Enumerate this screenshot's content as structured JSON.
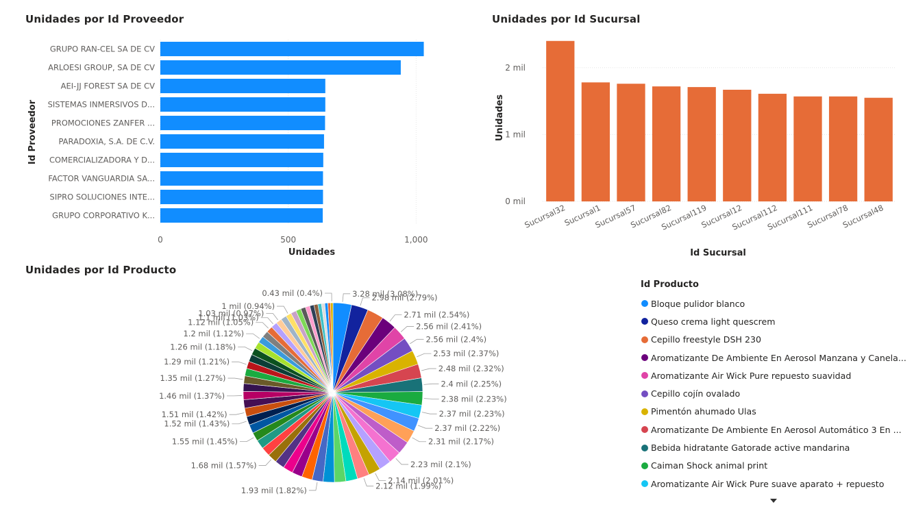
{
  "chart_data": [
    {
      "type": "bar",
      "orientation": "horizontal",
      "title": "Unidades por Id Proveedor",
      "xlabel": "Unidades",
      "ylabel": "Id Proveedor",
      "categories": [
        "GRUPO RAN-CEL SA DE CV",
        "ARLOESI GROUP, SA DE CV",
        "AEI-JJ FOREST SA DE CV",
        "SISTEMAS INMERSIVOS D...",
        "PROMOCIONES ZANFER ...",
        "PARADOXIA, S.A. DE C.V.",
        "COMERCIALIZADORA Y D...",
        "FACTOR VANGUARDIA SA...",
        "SIPRO SOLUCIONES INTE...",
        "GRUPO CORPORATIVO K..."
      ],
      "values": [
        1030,
        940,
        645,
        645,
        644,
        640,
        637,
        636,
        636,
        635
      ],
      "xlim": [
        0,
        1050
      ],
      "xticks": [
        0,
        500,
        1000
      ],
      "xtick_labels": [
        "0",
        "500",
        "1,000"
      ],
      "grid": true,
      "color": "#118DFF"
    },
    {
      "type": "bar",
      "title": "Unidades por Id Sucursal",
      "xlabel": "Id Sucursal",
      "ylabel": "Unidades",
      "categories": [
        "Sucursal32",
        "Sucursal1",
        "Sucursal57",
        "Sucursal82",
        "Sucursal119",
        "Sucursal12",
        "Sucursal112",
        "Sucursal111",
        "Sucursal78",
        "Sucursal48"
      ],
      "values": [
        2400,
        1780,
        1760,
        1720,
        1710,
        1670,
        1610,
        1570,
        1570,
        1550
      ],
      "ylim": [
        0,
        2500
      ],
      "yticks": [
        0,
        1000,
        2000
      ],
      "ytick_labels": [
        "0 mil",
        "1 mil",
        "2 mil"
      ],
      "grid": true,
      "color": "#E66C37"
    },
    {
      "type": "pie",
      "title": "Unidades por Id Producto",
      "legend_title": "Id Producto",
      "legend_placement": "right",
      "slice_count": 106,
      "labeled_slices": [
        {
          "label": "3.28 mil (3.08%)",
          "value": 3.08,
          "color": "#118DFF",
          "name": "Bloque pulidor blanco"
        },
        {
          "label": "2.98 mil (2.79%)",
          "value": 2.79,
          "color": "#12239E",
          "name": "Queso crema light quescrem"
        },
        {
          "label": "",
          "value": 2.75,
          "color": "#E66C37",
          "name": "Cepillo freestyle DSH 230"
        },
        {
          "label": "2.71 mil (2.54%)",
          "value": 2.54,
          "color": "#6B007B",
          "name": "Aromatizante De Ambiente En Aerosol Manzana y Canela..."
        },
        {
          "label": "2.56 mil (2.41%)",
          "value": 2.41,
          "color": "#E044A7",
          "name": "Aromatizante Air Wick Pure repuesto suavidad"
        },
        {
          "label": "2.56 mil (2.4%)",
          "value": 2.4,
          "color": "#744EC2",
          "name": "Cepillo cojín ovalado"
        },
        {
          "label": "2.53 mil (2.37%)",
          "value": 2.37,
          "color": "#D9B300",
          "name": "Pimentón ahumado Ulas"
        },
        {
          "label": "2.48 mil (2.32%)",
          "value": 2.32,
          "color": "#D64550",
          "name": "Aromatizante De Ambiente En Aerosol Automático 3 En ..."
        },
        {
          "label": "2.4 mil (2.25%)",
          "value": 2.25,
          "color": "#197278",
          "name": "Bebida hidratante Gatorade active mandarina"
        },
        {
          "label": "2.38 mil (2.23%)",
          "value": 2.23,
          "color": "#1AAB40",
          "name": "Caiman Shock animal print"
        },
        {
          "label": "2.37 mil (2.23%)",
          "value": 2.23,
          "color": "#15C6F4",
          "name": "Aromatizante Air Wick Pure suave aparato + repuesto"
        },
        {
          "label": "2.37 mil (2.22%)",
          "value": 2.22,
          "color": "#4092FF"
        },
        {
          "label": "2.31 mil (2.17%)",
          "value": 2.17,
          "color": "#FFA058"
        },
        {
          "label": "",
          "value": 2.15,
          "color": "#BE5DC9"
        },
        {
          "label": "2.23 mil (2.1%)",
          "value": 2.1,
          "color": "#F472D0"
        },
        {
          "label": "",
          "value": 2.05,
          "color": "#B5A1FF"
        },
        {
          "label": "2.14 mil (2.01%)",
          "value": 2.01,
          "color": "#C4A200"
        },
        {
          "label": "2.12 mil (1.99%)",
          "value": 1.99,
          "color": "#FF8080"
        },
        {
          "label": "",
          "value": 1.95,
          "color": "#00DBBC"
        },
        {
          "label": "",
          "value": 1.9,
          "color": "#5BD667"
        },
        {
          "label": "",
          "value": 1.88,
          "color": "#0091D5"
        },
        {
          "label": "1.93 mil (1.82%)",
          "value": 1.82,
          "color": "#4668C5"
        },
        {
          "label": "",
          "value": 1.75,
          "color": "#FF6300"
        },
        {
          "label": "",
          "value": 1.7,
          "color": "#99008A"
        },
        {
          "label": "",
          "value": 1.65,
          "color": "#EC008C"
        },
        {
          "label": "",
          "value": 1.6,
          "color": "#533285"
        },
        {
          "label": "1.68 mil (1.57%)",
          "value": 1.57,
          "color": "#99700A"
        },
        {
          "label": "",
          "value": 1.52,
          "color": "#FF4141"
        },
        {
          "label": "",
          "value": 1.5,
          "color": "#1F9A85"
        },
        {
          "label": "1.55 mil (1.45%)",
          "value": 1.45,
          "color": "#25891C"
        },
        {
          "label": "",
          "value": 1.44,
          "color": "#0057A2"
        },
        {
          "label": "1.52 mil (1.43%)",
          "value": 1.43,
          "color": "#002050"
        },
        {
          "label": "1.51 mil (1.42%)",
          "value": 1.42,
          "color": "#C94F0F"
        },
        {
          "label": "",
          "value": 1.4,
          "color": "#450F54"
        },
        {
          "label": "1.46 mil (1.37%)",
          "value": 1.37,
          "color": "#B60064"
        },
        {
          "label": "",
          "value": 1.3,
          "color": "#34124F"
        },
        {
          "label": "1.35 mil (1.27%)",
          "value": 1.27,
          "color": "#6A5A29"
        },
        {
          "label": "",
          "value": 1.25,
          "color": "#1AAB40"
        },
        {
          "label": "1.29 mil (1.21%)",
          "value": 1.21,
          "color": "#BA141A"
        },
        {
          "label": "",
          "value": 1.2,
          "color": "#0C3D37"
        },
        {
          "label": "1.26 mil (1.18%)",
          "value": 1.18,
          "color": "#0B511F"
        },
        {
          "label": "",
          "value": 1.15,
          "color": "#A6E22E"
        },
        {
          "label": "1.2 mil (1.12%)",
          "value": 1.12,
          "color": "#3A9BDC"
        },
        {
          "label": "",
          "value": 1.1,
          "color": "#7F7F7F"
        },
        {
          "label": "1.12 mil (1.05%)",
          "value": 1.05,
          "color": "#E66C37"
        },
        {
          "label": "1.1 mil (1.03%)",
          "value": 1.03,
          "color": "#B5A1FF"
        },
        {
          "label": "1.03 mil (0.97%)",
          "value": 0.97,
          "color": "#FFCC99"
        },
        {
          "label": "",
          "value": 0.96,
          "color": "#9FB4C7"
        },
        {
          "label": "1 mil (0.94%)",
          "value": 0.94,
          "color": "#FFE066"
        },
        {
          "label": "",
          "value": 0.9,
          "color": "#C8A2C8"
        },
        {
          "label": "",
          "value": 0.85,
          "color": "#7ED957"
        },
        {
          "label": "",
          "value": 0.8,
          "color": "#5A5A5A"
        },
        {
          "label": "",
          "value": 0.75,
          "color": "#FF9ECD"
        },
        {
          "label": "",
          "value": 0.7,
          "color": "#2E4057"
        },
        {
          "label": "",
          "value": 0.65,
          "color": "#8B5E3C"
        },
        {
          "label": "",
          "value": 0.6,
          "color": "#3FC1C9"
        },
        {
          "label": "",
          "value": 0.55,
          "color": "#DDDDDD"
        },
        {
          "label": "",
          "value": 0.5,
          "color": "#118DFF"
        },
        {
          "label": "",
          "value": 0.45,
          "color": "#E66C37"
        },
        {
          "label": "0.43 mil (0.4%)",
          "value": 0.4,
          "color": "#D9B300"
        }
      ]
    }
  ],
  "legend": {
    "title": "Id Producto",
    "items": [
      {
        "label": "Bloque pulidor blanco",
        "color": "#118DFF"
      },
      {
        "label": "Queso crema light quescrem",
        "color": "#12239E"
      },
      {
        "label": "Cepillo freestyle DSH 230",
        "color": "#E66C37"
      },
      {
        "label": "Aromatizante De Ambiente En Aerosol Manzana y Canela...",
        "color": "#6B007B"
      },
      {
        "label": "Aromatizante Air Wick Pure repuesto suavidad",
        "color": "#E044A7"
      },
      {
        "label": "Cepillo cojín ovalado",
        "color": "#744EC2"
      },
      {
        "label": "Pimentón ahumado Ulas",
        "color": "#D9B300"
      },
      {
        "label": "Aromatizante De Ambiente En Aerosol Automático 3 En ...",
        "color": "#D64550"
      },
      {
        "label": "Bebida hidratante Gatorade active mandarina",
        "color": "#197278"
      },
      {
        "label": "Caiman Shock animal print",
        "color": "#1AAB40"
      },
      {
        "label": "Aromatizante Air Wick Pure suave aparato + repuesto",
        "color": "#15C6F4"
      }
    ]
  }
}
